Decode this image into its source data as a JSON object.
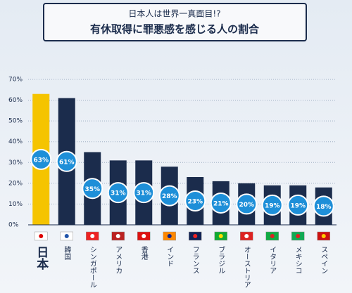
{
  "chart_data": {
    "type": "bar",
    "title": "日本人は世界一真面目!?",
    "subtitle": "有休取得に罪悪感を感じる人の割合",
    "categories": [
      "日本",
      "韓国",
      "シンガポール",
      "アメリカ",
      "香港",
      "インド",
      "フランス",
      "ブラジル",
      "オーストリア",
      "イタリア",
      "メキシコ",
      "スペイン"
    ],
    "values": [
      63,
      61,
      35,
      31,
      31,
      28,
      23,
      21,
      20,
      19,
      19,
      18
    ],
    "value_labels": [
      "63%",
      "61%",
      "35%",
      "31%",
      "31%",
      "28%",
      "23%",
      "21%",
      "20%",
      "19%",
      "19%",
      "18%"
    ],
    "colors": [
      "#f5c400",
      "#1b2c4c",
      "#1b2c4c",
      "#1b2c4c",
      "#1b2c4c",
      "#1b2c4c",
      "#1b2c4c",
      "#1b2c4c",
      "#1b2c4c",
      "#1b2c4c",
      "#1b2c4c",
      "#1b2c4c"
    ],
    "ylim": [
      0,
      70
    ],
    "yticks": [
      {
        "value": 0,
        "label": "0%"
      },
      {
        "value": 10,
        "label": "10%"
      },
      {
        "value": 20,
        "label": "20%"
      },
      {
        "value": 30,
        "label": "30%"
      },
      {
        "value": 40,
        "label": "40%"
      },
      {
        "value": 50,
        "label": "50%"
      },
      {
        "value": 60,
        "label": "60%"
      },
      {
        "value": 70,
        "label": "70%"
      }
    ],
    "grid": true
  }
}
